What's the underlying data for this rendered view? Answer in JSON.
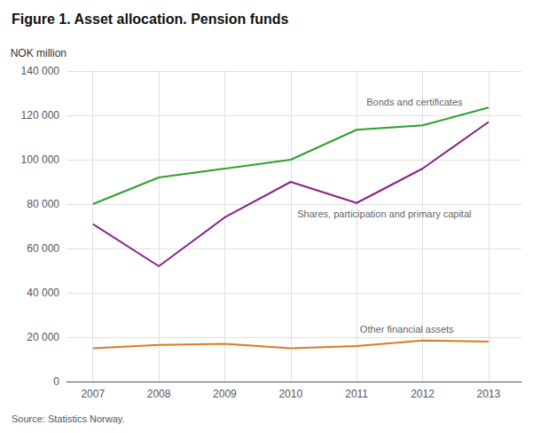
{
  "chart_data": {
    "type": "line",
    "title": "Figure 1. Asset allocation. Pension funds",
    "ylabel": "NOK million",
    "source": "Source: Statistics Norway.",
    "x": [
      2007,
      2008,
      2009,
      2010,
      2011,
      2012,
      2013
    ],
    "series": [
      {
        "color": "#2ca02c",
        "values": [
          80000,
          92000,
          96000,
          100000,
          113500,
          115500,
          123500
        ]
      },
      {
        "color": "#882288",
        "values": [
          71000,
          52000,
          74000,
          90000,
          80500,
          96000,
          117000
        ]
      },
      {
        "color": "#e07820",
        "values": [
          15000,
          16500,
          17000,
          15000,
          16000,
          18500,
          18000
        ]
      }
    ],
    "annotations": [
      {
        "text": "Bonds and certificates",
        "x": 2011.15,
        "y": 124000
      },
      {
        "text": "Shares, participation and primary capital",
        "x": 2010.1,
        "y": 78000
      },
      {
        "text": "Other financial assets",
        "x": 2011.05,
        "y": 21500
      }
    ],
    "xlim": [
      2006.6,
      2013.5
    ],
    "xticks": [
      2007,
      2008,
      2009,
      2010,
      2011,
      2012,
      2013
    ],
    "ylim": [
      0,
      140000
    ],
    "yticks": [
      0,
      {
        "value": 20000,
        "label": "20 000"
      },
      {
        "value": 40000,
        "label": "40 000"
      },
      {
        "value": 60000,
        "label": "60 000"
      },
      {
        "value": 80000,
        "label": "80 000"
      },
      {
        "value": 100000,
        "label": "100 000"
      },
      {
        "value": 120000,
        "label": "120 000"
      },
      {
        "value": 140000,
        "label": "140 000"
      }
    ],
    "grid": true
  }
}
